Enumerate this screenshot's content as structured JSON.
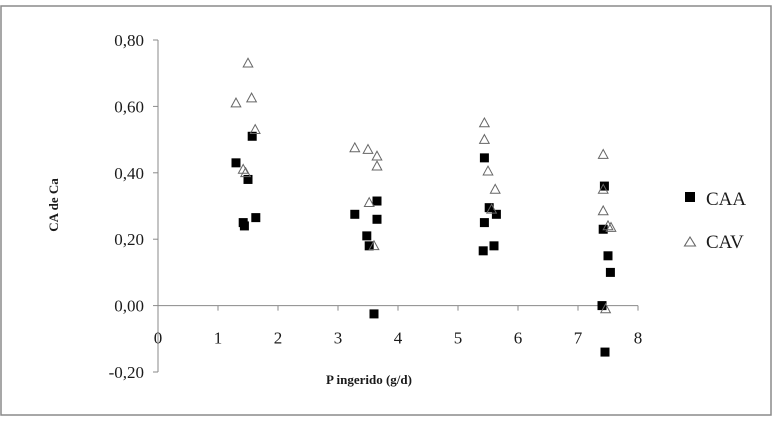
{
  "chart_data": {
    "type": "scatter",
    "title": "",
    "xlabel": "P ingerido (g/d)",
    "ylabel": "CA de Ca",
    "xlim": [
      0,
      8
    ],
    "ylim": [
      -0.2,
      0.8
    ],
    "x_ticks": [
      "0",
      "1",
      "2",
      "3",
      "4",
      "5",
      "6",
      "7",
      "8"
    ],
    "y_ticks": [
      "-0,20",
      "0,00",
      "0,20",
      "0,40",
      "0,60",
      "0,80"
    ],
    "grid": false,
    "legend_position": "right",
    "series": [
      {
        "name": "CAA",
        "marker": "square",
        "color": "#000000",
        "points": [
          [
            1.3,
            0.43
          ],
          [
            1.42,
            0.25
          ],
          [
            1.44,
            0.24
          ],
          [
            1.5,
            0.38
          ],
          [
            1.57,
            0.51
          ],
          [
            1.63,
            0.265
          ],
          [
            3.28,
            0.275
          ],
          [
            3.48,
            0.21
          ],
          [
            3.52,
            0.18
          ],
          [
            3.6,
            -0.025
          ],
          [
            3.65,
            0.26
          ],
          [
            3.65,
            0.315
          ],
          [
            5.42,
            0.165
          ],
          [
            5.44,
            0.25
          ],
          [
            5.44,
            0.445
          ],
          [
            5.52,
            0.295
          ],
          [
            5.6,
            0.18
          ],
          [
            5.64,
            0.275
          ],
          [
            7.4,
            0.0
          ],
          [
            7.42,
            0.23
          ],
          [
            7.44,
            0.36
          ],
          [
            7.45,
            -0.14
          ],
          [
            7.5,
            0.15
          ],
          [
            7.54,
            0.1
          ]
        ]
      },
      {
        "name": "CAV",
        "marker": "triangle",
        "color": "#666666",
        "points": [
          [
            1.3,
            0.61
          ],
          [
            1.42,
            0.41
          ],
          [
            1.46,
            0.4
          ],
          [
            1.5,
            0.73
          ],
          [
            1.56,
            0.625
          ],
          [
            1.62,
            0.53
          ],
          [
            3.28,
            0.475
          ],
          [
            3.5,
            0.47
          ],
          [
            3.52,
            0.31
          ],
          [
            3.6,
            0.18
          ],
          [
            3.65,
            0.45
          ],
          [
            3.65,
            0.42
          ],
          [
            5.44,
            0.55
          ],
          [
            5.44,
            0.5
          ],
          [
            5.5,
            0.405
          ],
          [
            5.56,
            0.29
          ],
          [
            5.62,
            0.35
          ],
          [
            7.42,
            0.455
          ],
          [
            7.42,
            0.35
          ],
          [
            7.42,
            0.285
          ],
          [
            7.46,
            -0.01
          ],
          [
            7.5,
            0.24
          ],
          [
            7.55,
            0.235
          ]
        ]
      }
    ]
  }
}
